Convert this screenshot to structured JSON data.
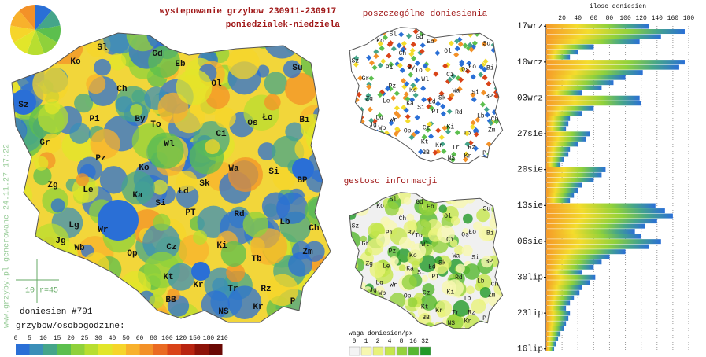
{
  "header": {
    "title": "wystepowanie grzybow 230911-230917",
    "subtitle": "poniedzialek-niedziela",
    "report_count": "doniesien #791",
    "scale_note": "10 r=45",
    "footer": "www.grzyby.pl generowane 24.11.27 17:22"
  },
  "map": {
    "labels": [
      "Sl",
      "Gd",
      "Ko",
      "Eb",
      "Su",
      "Ch",
      "Ol",
      "Sz",
      "Pi",
      "By",
      "To",
      "Ło",
      "Bi",
      "Os",
      "Ci",
      "Gr",
      "Wl",
      "Pz",
      "Ko",
      "Wa",
      "Si",
      "Zg",
      "Le",
      "Ka",
      "Łd",
      "Sk",
      "BP",
      "Si",
      "Lg",
      "Wr",
      "PT",
      "Rd",
      "Lb",
      "Ch",
      "Jg",
      "Wb",
      "Op",
      "Cz",
      "Ki",
      "Zm",
      "Tb",
      "Kt",
      "Kr",
      "Tr",
      "Rz",
      "BB",
      "Kr",
      "NS",
      "P"
    ]
  },
  "legend": {
    "title": "grzybow/osobogodzine:",
    "ticks": [
      0,
      5,
      10,
      15,
      20,
      25,
      30,
      40,
      50,
      60,
      80,
      100,
      120,
      150,
      180,
      210
    ],
    "colors": [
      "#2a6fd6",
      "#3b8fb8",
      "#45a58a",
      "#5cbf4e",
      "#8fd13b",
      "#b8de30",
      "#e2e62a",
      "#f6d52a",
      "#f8b12c",
      "#f39128",
      "#ea6a22",
      "#d94318",
      "#b82410",
      "#8c1208",
      "#6a0804"
    ]
  },
  "points_panel": {
    "title": "poszczególne doniesienia"
  },
  "density_panel": {
    "title": "gestosc informacji",
    "legend_title": "waga doniesien/px",
    "ticks": [
      0,
      1,
      2,
      4,
      8,
      16,
      32
    ],
    "colors": [
      "#f4f4f4",
      "#f7f7b0",
      "#e8f27a",
      "#c5e64c",
      "#94d23c",
      "#55b830",
      "#229a28"
    ]
  },
  "chart_data": {
    "type": "bar",
    "orientation": "horizontal",
    "x_label": "ilosc doniesien",
    "categories": [
      "17wrz",
      null,
      null,
      null,
      null,
      null,
      null,
      "10wrz",
      null,
      null,
      null,
      null,
      null,
      null,
      "03wrz",
      null,
      null,
      null,
      null,
      null,
      null,
      "27sie",
      null,
      null,
      null,
      null,
      null,
      null,
      "20sie",
      null,
      null,
      null,
      null,
      null,
      null,
      "13sie",
      null,
      null,
      null,
      null,
      null,
      null,
      "06sie",
      null,
      null,
      null,
      null,
      null,
      null,
      "30lip",
      null,
      null,
      null,
      null,
      null,
      null,
      "23lip",
      null,
      null,
      null,
      null,
      null,
      null,
      "16lip"
    ],
    "values": [
      130,
      175,
      145,
      118,
      60,
      40,
      30,
      175,
      168,
      122,
      100,
      85,
      70,
      45,
      118,
      120,
      60,
      45,
      30,
      28,
      25,
      55,
      50,
      40,
      30,
      28,
      22,
      18,
      75,
      70,
      60,
      45,
      40,
      35,
      30,
      138,
      150,
      160,
      140,
      125,
      112,
      120,
      145,
      130,
      100,
      80,
      70,
      60,
      45,
      62,
      55,
      45,
      42,
      35,
      30,
      25,
      30,
      28,
      25,
      22,
      18,
      15,
      12,
      10
    ],
    "xlim": [
      0,
      180
    ],
    "xticks": [
      20,
      40,
      60,
      80,
      100,
      120,
      140,
      160,
      180
    ]
  }
}
